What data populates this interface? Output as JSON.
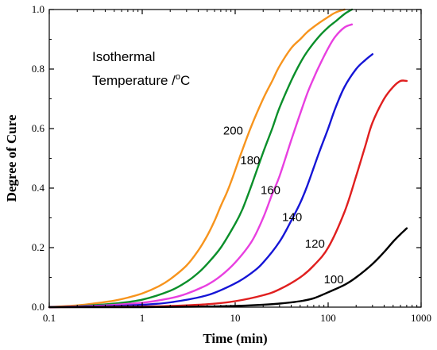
{
  "chart_data": {
    "type": "line",
    "xlabel": "Time (min)",
    "ylabel": "Degree of Cure",
    "x_scale": "log",
    "xlim": [
      0.1,
      1000
    ],
    "ylim": [
      0,
      1.0
    ],
    "x_ticks": [
      "0.1",
      "1",
      "10",
      "100",
      "1000"
    ],
    "y_ticks": [
      "0.0",
      "0.2",
      "0.4",
      "0.6",
      "0.8",
      "1.0"
    ],
    "grid": false,
    "annotation_line1": "Isothermal",
    "annotation_line2": "Temperature /",
    "annotation_unit_sup": "o",
    "annotation_unit": "C",
    "series": [
      {
        "name": "200",
        "color": "#F7941D",
        "x": [
          0.1,
          0.2,
          0.3,
          0.5,
          0.7,
          1,
          1.5,
          2,
          3,
          4,
          5,
          6,
          7,
          8,
          9,
          10,
          12,
          15,
          20,
          25,
          30,
          40,
          50,
          60,
          80,
          100,
          120,
          150
        ],
        "y": [
          0.0,
          0.006,
          0.012,
          0.022,
          0.032,
          0.046,
          0.07,
          0.094,
          0.14,
          0.19,
          0.24,
          0.29,
          0.34,
          0.38,
          0.42,
          0.46,
          0.53,
          0.61,
          0.7,
          0.76,
          0.81,
          0.87,
          0.9,
          0.925,
          0.955,
          0.975,
          0.99,
          1.0
        ]
      },
      {
        "name": "180",
        "color": "#0A8F2A",
        "x": [
          0.1,
          0.2,
          0.5,
          1,
          2,
          3,
          4,
          5,
          7,
          10,
          12,
          15,
          20,
          25,
          30,
          40,
          50,
          60,
          80,
          100,
          120,
          150,
          180
        ],
        "y": [
          0.0,
          0.003,
          0.012,
          0.025,
          0.055,
          0.085,
          0.115,
          0.145,
          0.2,
          0.28,
          0.33,
          0.41,
          0.52,
          0.6,
          0.67,
          0.76,
          0.82,
          0.86,
          0.91,
          0.94,
          0.96,
          0.985,
          1.0
        ]
      },
      {
        "name": "160",
        "color": "#E83FE0",
        "x": [
          0.1,
          0.3,
          1,
          2,
          3,
          5,
          7,
          10,
          15,
          20,
          25,
          30,
          40,
          50,
          60,
          70,
          80,
          100,
          120,
          150,
          180
        ],
        "y": [
          0.0,
          0.004,
          0.015,
          0.03,
          0.045,
          0.075,
          0.105,
          0.15,
          0.22,
          0.3,
          0.38,
          0.44,
          0.56,
          0.65,
          0.72,
          0.77,
          0.81,
          0.87,
          0.91,
          0.94,
          0.95
        ]
      },
      {
        "name": "140",
        "color": "#1515D6",
        "x": [
          0.1,
          0.5,
          1,
          2,
          5,
          10,
          15,
          20,
          30,
          40,
          50,
          60,
          80,
          100,
          120,
          150,
          200,
          250,
          300
        ],
        "y": [
          0.0,
          0.004,
          0.008,
          0.016,
          0.04,
          0.08,
          0.115,
          0.15,
          0.22,
          0.29,
          0.35,
          0.41,
          0.52,
          0.6,
          0.67,
          0.74,
          0.8,
          0.83,
          0.85
        ]
      },
      {
        "name": "120",
        "color": "#E01F1F",
        "x": [
          0.1,
          1,
          2,
          5,
          10,
          20,
          30,
          50,
          70,
          100,
          150,
          200,
          250,
          300,
          400,
          500,
          600,
          700
        ],
        "y": [
          0.0,
          0.002,
          0.004,
          0.01,
          0.02,
          0.04,
          0.06,
          0.1,
          0.14,
          0.2,
          0.32,
          0.44,
          0.54,
          0.62,
          0.7,
          0.74,
          0.76,
          0.76
        ]
      },
      {
        "name": "100",
        "color": "#000000",
        "x": [
          0.1,
          1,
          5,
          10,
          20,
          30,
          50,
          70,
          100,
          150,
          200,
          300,
          400,
          500,
          600,
          700
        ],
        "y": [
          0.0,
          0.0,
          0.002,
          0.004,
          0.008,
          0.012,
          0.02,
          0.03,
          0.05,
          0.075,
          0.1,
          0.145,
          0.185,
          0.22,
          0.245,
          0.265
        ]
      }
    ]
  }
}
